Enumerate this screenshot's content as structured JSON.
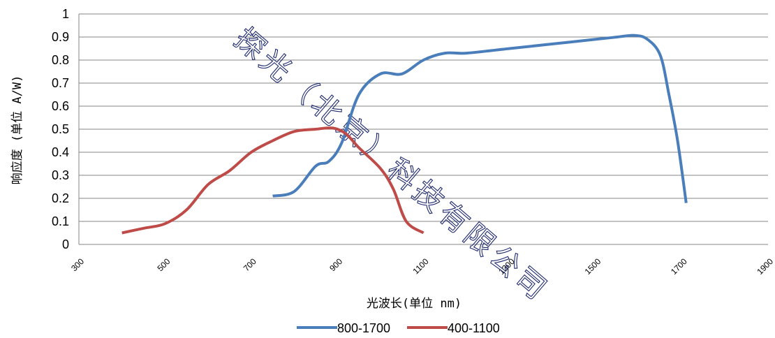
{
  "chart_data": {
    "type": "line",
    "title": "",
    "xlabel": "光波长(单位 nm)",
    "ylabel": "响应度 (单位 A/W)",
    "xlim": [
      300,
      1900
    ],
    "ylim": [
      0,
      1
    ],
    "x_ticks": [
      "300",
      "500",
      "700",
      "900",
      "1100",
      "1300",
      "1500",
      "1700",
      "1900"
    ],
    "y_ticks": [
      "0",
      "0.1",
      "0.2",
      "0.3",
      "0.4",
      "0.5",
      "0.6",
      "0.7",
      "0.8",
      "0.9",
      "1"
    ],
    "grid": true,
    "legend_position": "bottom",
    "watermark": "探光（北京）科技有限公司",
    "series": [
      {
        "name": "800-1700",
        "color": "#4a7ebb",
        "points": [
          [
            750,
            0.21
          ],
          [
            800,
            0.23
          ],
          [
            850,
            0.34
          ],
          [
            880,
            0.36
          ],
          [
            910,
            0.44
          ],
          [
            950,
            0.65
          ],
          [
            1000,
            0.74
          ],
          [
            1050,
            0.74
          ],
          [
            1100,
            0.8
          ],
          [
            1150,
            0.83
          ],
          [
            1200,
            0.83
          ],
          [
            1300,
            0.85
          ],
          [
            1400,
            0.87
          ],
          [
            1500,
            0.89
          ],
          [
            1550,
            0.9
          ],
          [
            1590,
            0.907
          ],
          [
            1620,
            0.89
          ],
          [
            1650,
            0.82
          ],
          [
            1670,
            0.65
          ],
          [
            1690,
            0.45
          ],
          [
            1710,
            0.18
          ]
        ]
      },
      {
        "name": "400-1100",
        "color": "#be4b48",
        "points": [
          [
            400,
            0.05
          ],
          [
            450,
            0.07
          ],
          [
            500,
            0.09
          ],
          [
            550,
            0.15
          ],
          [
            600,
            0.26
          ],
          [
            650,
            0.32
          ],
          [
            700,
            0.4
          ],
          [
            750,
            0.45
          ],
          [
            800,
            0.49
          ],
          [
            850,
            0.5
          ],
          [
            890,
            0.505
          ],
          [
            920,
            0.48
          ],
          [
            950,
            0.42
          ],
          [
            1000,
            0.33
          ],
          [
            1030,
            0.24
          ],
          [
            1060,
            0.1
          ],
          [
            1100,
            0.05
          ]
        ]
      }
    ]
  }
}
